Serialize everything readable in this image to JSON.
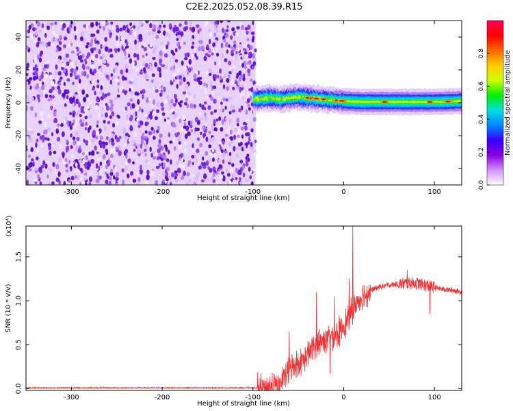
{
  "title": "C2E2.2025.052.08.39.R15",
  "chart_data": [
    {
      "type": "heatmap",
      "xlabel": "Height of straight line (km)",
      "ylabel": "Frequency (Hz)",
      "xlim": [
        -350,
        130
      ],
      "ylim": [
        -50,
        50
      ],
      "xticks": [
        -300,
        -200,
        -100,
        0,
        100
      ],
      "yticks": [
        40,
        20,
        0,
        -20,
        -40
      ],
      "xtick_labels": [
        "-300",
        "-200",
        "-100",
        "0",
        "100"
      ],
      "ytick_labels": [
        "40",
        "20",
        "0",
        "-20",
        "-40"
      ],
      "noise_region_x": [
        -350,
        -97
      ],
      "signal_band": {
        "x": [
          -100,
          -90,
          -80,
          -70,
          -60,
          -50,
          -40,
          -30,
          -20,
          -10,
          0,
          20,
          40,
          60,
          80,
          100,
          130
        ],
        "center_freq": [
          2,
          2.5,
          3,
          2,
          3,
          3.5,
          3,
          2.5,
          2,
          1.5,
          1,
          0.5,
          0.5,
          0.5,
          0.5,
          0.5,
          1
        ]
      },
      "colorbar": {
        "label": "Normalized spectral amplitude",
        "range": [
          0.0,
          1.0
        ],
        "ticks": [
          0.0,
          0.2,
          0.4,
          0.6,
          0.8
        ],
        "tick_labels": [
          "0.0",
          "0.2",
          "0.4",
          "0.6",
          "0.8"
        ],
        "colors": [
          "#ffffff",
          "#d090ff",
          "#8800dd",
          "#3300ff",
          "#0088ff",
          "#00e0e0",
          "#00ee00",
          "#ccff00",
          "#ffcc00",
          "#ff6600",
          "#ff0000",
          "#ff0055"
        ]
      },
      "grid": false
    },
    {
      "type": "line",
      "xlabel": "Height of straight line (km)",
      "ylabel": "SNR (10 * v/v)",
      "multiplier": "(x10⁴)",
      "xlim": [
        -350,
        130
      ],
      "ylim": [
        -0.02,
        1.85
      ],
      "xticks": [
        -300,
        -200,
        -100,
        0,
        100
      ],
      "xtick_labels": [
        "-300",
        "-200",
        "-100",
        "0",
        "100"
      ],
      "yticks": [
        0.0,
        0.5,
        1.0,
        1.5
      ],
      "ytick_labels": [
        "0.0",
        "0.5",
        "1.0",
        "1.5"
      ],
      "series": [
        {
          "color": "#ee3333",
          "x": [
            -350,
            -150,
            -95,
            -80,
            -70,
            -65,
            -60,
            -55,
            -50,
            -45,
            -40,
            -35,
            -30,
            -25,
            -20,
            -15,
            -10,
            -5,
            0,
            5,
            10,
            15,
            20,
            30,
            40,
            50,
            60,
            70,
            80,
            90,
            100,
            110,
            120,
            130
          ],
          "y": [
            0.01,
            0.01,
            0.01,
            0.02,
            0.05,
            0.12,
            0.22,
            0.28,
            0.3,
            0.32,
            0.38,
            0.45,
            0.5,
            0.55,
            0.55,
            0.6,
            0.6,
            0.65,
            0.72,
            0.8,
            0.9,
            0.98,
            1.05,
            1.12,
            1.16,
            1.18,
            1.19,
            1.2,
            1.2,
            1.18,
            1.15,
            1.13,
            1.12,
            1.1
          ],
          "spikes": [
            {
              "x": 10,
              "y": 1.85
            },
            {
              "x": 6,
              "y": 1.25
            },
            {
              "x": -30,
              "y": 1.1
            },
            {
              "x": -10,
              "y": 1.05
            },
            {
              "x": -60,
              "y": 0.65
            },
            {
              "x": -15,
              "y": 0.17
            },
            {
              "x": 95,
              "y": 0.85
            },
            {
              "x": 70,
              "y": 1.35
            }
          ],
          "noise_amplitude": 0.12
        }
      ],
      "grid": false
    }
  ]
}
